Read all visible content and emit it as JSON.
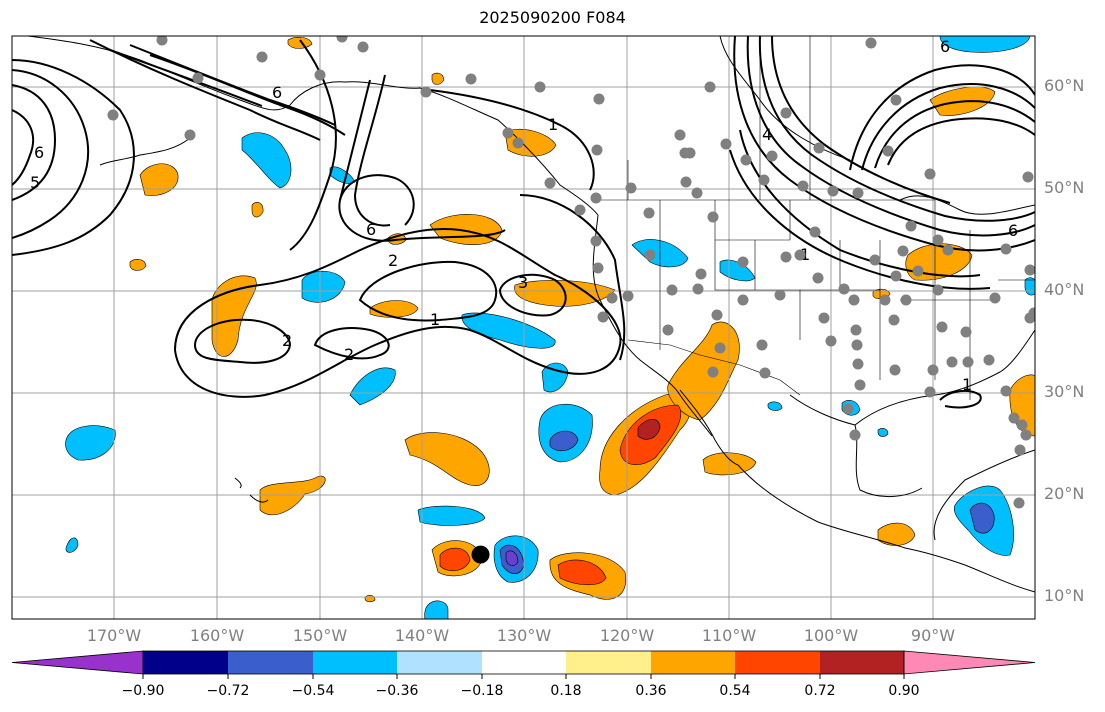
{
  "title": "2025090200 F084",
  "map": {
    "projection": "cylindrical",
    "lon_range": [
      -180,
      -80
    ],
    "lat_range": [
      8,
      65
    ],
    "lat_labels": [
      "60°N",
      "50°N",
      "40°N",
      "30°N",
      "20°N",
      "10°N"
    ],
    "lon_labels": [
      "170°W",
      "160°W",
      "150°W",
      "140°W",
      "130°W",
      "120°W",
      "110°W",
      "100°W",
      "90°W"
    ],
    "contour_labels": [
      "6",
      "6",
      "6",
      "6",
      "5",
      "4",
      "6",
      "2",
      "1",
      "3",
      "1",
      "2",
      "2",
      "1",
      "1"
    ],
    "marker": {
      "type": "black-dot",
      "lon": -134.2,
      "lat": 14.3
    }
  },
  "colorbar": {
    "tick_labels": [
      "−0.90",
      "−0.72",
      "−0.54",
      "−0.36",
      "−0.18",
      "0.18",
      "0.36",
      "0.54",
      "0.72",
      "0.90"
    ],
    "colors": [
      "#9932cc",
      "#00008b",
      "#3a5fcd",
      "#00bfff",
      "#b0e2ff",
      "#ffffff",
      "#fff08b",
      "#ffa500",
      "#ff4500",
      "#b22222",
      "#ff89b4"
    ]
  },
  "colors": {
    "neg_light": "#00bfff",
    "neg_mid": "#3a5fcd",
    "neg_dark": "#6a3fcd",
    "pos_yellow": "#ffa500",
    "pos_orange": "#ff4500",
    "pos_red": "#b22222",
    "station": "#808080",
    "grid": "#a0a0a0",
    "coast": "#000000"
  }
}
